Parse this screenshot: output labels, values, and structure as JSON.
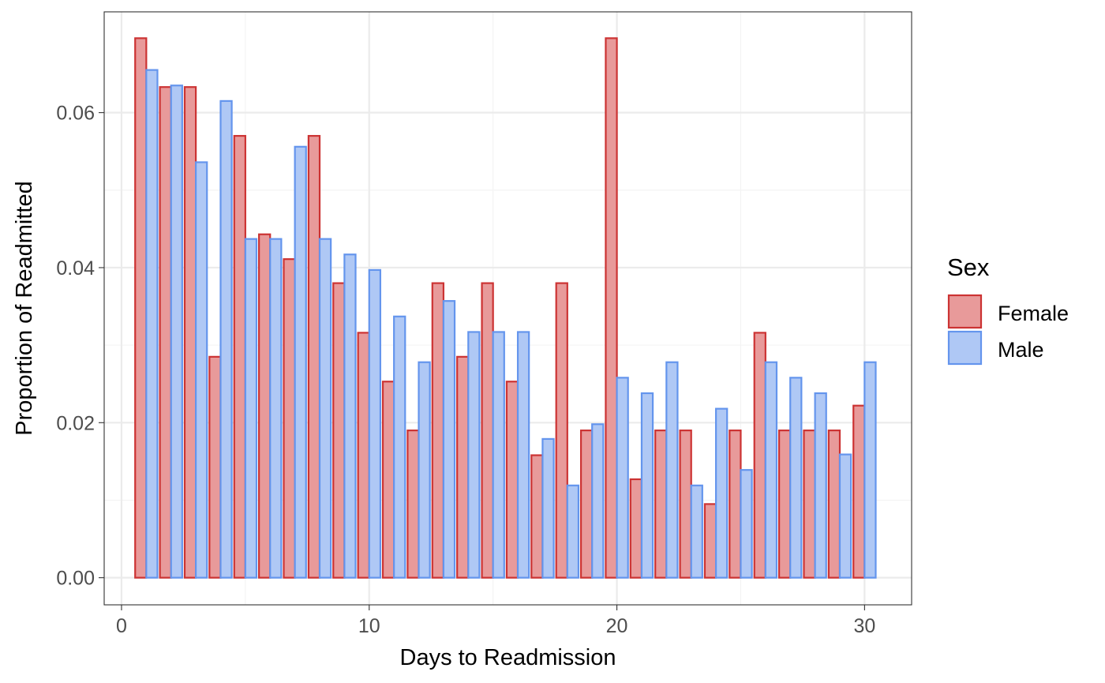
{
  "chart_data": {
    "type": "bar",
    "title": "",
    "xlabel": "Days to Readmission",
    "ylabel": "Proportion of Readmitted",
    "xlim": [
      -0.7,
      31.9
    ],
    "ylim": [
      -0.0035,
      0.073
    ],
    "x_ticks": [
      0,
      10,
      20,
      30
    ],
    "x_tick_labels": [
      "0",
      "10",
      "20",
      "30"
    ],
    "y_ticks": [
      0.0,
      0.02,
      0.04,
      0.06
    ],
    "y_tick_labels": [
      "0.00",
      "0.02",
      "0.04",
      "0.06"
    ],
    "grid": true,
    "legend": {
      "title": "Sex",
      "position": "right"
    },
    "x": [
      1,
      2,
      3,
      4,
      5,
      6,
      7,
      8,
      9,
      10,
      11,
      12,
      13,
      14,
      15,
      16,
      17,
      18,
      19,
      20,
      21,
      22,
      23,
      24,
      25,
      26,
      27,
      28,
      29,
      30
    ],
    "series": [
      {
        "name": "Female",
        "fill": "#E89A9A",
        "stroke": "#CC3333",
        "values": [
          0.0696,
          0.0633,
          0.0633,
          0.0285,
          0.057,
          0.0443,
          0.0411,
          0.057,
          0.038,
          0.0316,
          0.0253,
          0.019,
          0.038,
          0.0285,
          0.038,
          0.0253,
          0.0158,
          0.038,
          0.019,
          0.0696,
          0.0127,
          0.019,
          0.019,
          0.0095,
          0.019,
          0.0316,
          0.019,
          0.019,
          0.019,
          0.0222
        ]
      },
      {
        "name": "Male",
        "fill": "#AFC8F5",
        "stroke": "#6495ED",
        "values": [
          0.0655,
          0.0635,
          0.0536,
          0.0615,
          0.0437,
          0.0437,
          0.0556,
          0.0437,
          0.0417,
          0.0397,
          0.0337,
          0.0278,
          0.0357,
          0.0317,
          0.0317,
          0.0317,
          0.0179,
          0.0119,
          0.0198,
          0.0258,
          0.0238,
          0.0278,
          0.0119,
          0.0218,
          0.0139,
          0.0278,
          0.0258,
          0.0238,
          0.0159,
          0.0278
        ]
      }
    ]
  }
}
